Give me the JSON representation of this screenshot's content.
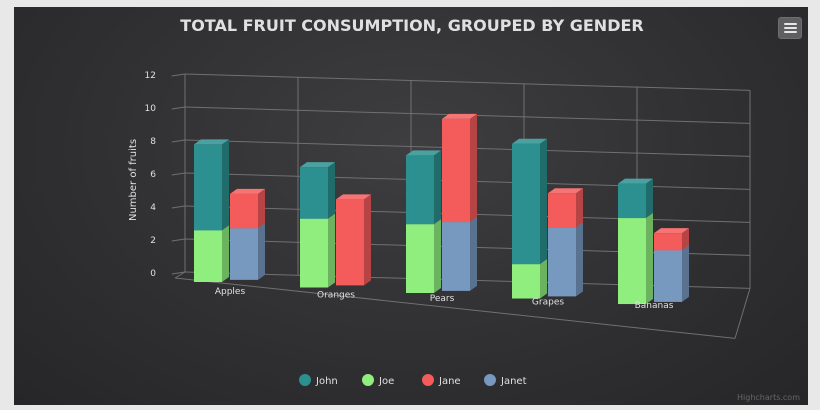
{
  "chart_data": {
    "type": "bar",
    "stacked": true,
    "grouped_by": "gender",
    "title": "TOTAL FRUIT CONSUMPTION, GROUPED BY GENDER",
    "ylabel": "Number of fruits",
    "xlabel": "",
    "ylim": [
      0,
      12
    ],
    "yticks": [
      0,
      2,
      4,
      6,
      8,
      10,
      12
    ],
    "categories": [
      "Apples",
      "Oranges",
      "Pears",
      "Grapes",
      "Bananas"
    ],
    "series": [
      {
        "name": "John",
        "stack": "male",
        "color": "#2b908f",
        "values": [
          5,
          3,
          4,
          7,
          2
        ]
      },
      {
        "name": "Joe",
        "stack": "male",
        "color": "#90ee7e",
        "values": [
          3,
          4,
          4,
          2,
          5
        ]
      },
      {
        "name": "Jane",
        "stack": "female",
        "color": "#f45b5b",
        "values": [
          2,
          5,
          6,
          2,
          1
        ]
      },
      {
        "name": "Janet",
        "stack": "female",
        "color": "#7798bf",
        "values": [
          3,
          0,
          4,
          4,
          3
        ]
      }
    ],
    "legend_position": "bottom",
    "grid": true,
    "credits": "Highcharts.com"
  },
  "ui": {
    "menu_icon": "hamburger-menu-icon"
  }
}
